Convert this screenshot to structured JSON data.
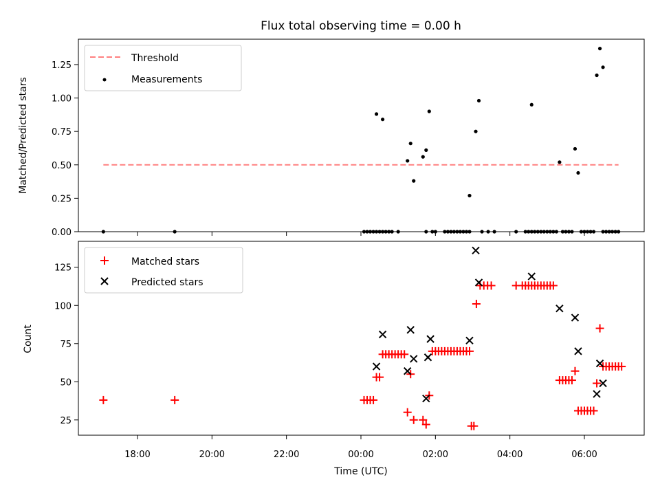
{
  "chart_data": [
    {
      "type": "scatter",
      "title": "Flux total observing time = 0.00 h",
      "ylabel": "Matched/Predicted stars",
      "ylim": [
        0,
        1.44
      ],
      "yticks": [
        "0.00",
        "0.25",
        "0.50",
        "0.75",
        "1.00",
        "1.25"
      ],
      "ytick_values": [
        0,
        0.25,
        0.5,
        0.75,
        1.0,
        1.25
      ],
      "legend": {
        "position": "top-left",
        "entries": [
          "Threshold",
          "Measurements"
        ]
      },
      "threshold": {
        "name": "Threshold",
        "value": 0.5,
        "x_range": [
          "17:05",
          "06:55"
        ],
        "color": "#ff7f7f"
      },
      "series": [
        {
          "name": "Measurements",
          "color": "#000000",
          "points": [
            [
              "17:05",
              0
            ],
            [
              "19:00",
              0
            ],
            [
              "00:05",
              0
            ],
            [
              "00:10",
              0
            ],
            [
              "00:15",
              0
            ],
            [
              "00:20",
              0
            ],
            [
              "00:25",
              0
            ],
            [
              "00:30",
              0
            ],
            [
              "00:35",
              0
            ],
            [
              "00:40",
              0
            ],
            [
              "00:45",
              0
            ],
            [
              "00:50",
              0
            ],
            [
              "01:00",
              0
            ],
            [
              "01:45",
              0
            ],
            [
              "01:55",
              0
            ],
            [
              "02:00",
              0
            ],
            [
              "02:15",
              0
            ],
            [
              "02:20",
              0
            ],
            [
              "02:25",
              0
            ],
            [
              "02:30",
              0
            ],
            [
              "02:35",
              0
            ],
            [
              "02:40",
              0
            ],
            [
              "02:45",
              0
            ],
            [
              "02:50",
              0
            ],
            [
              "02:55",
              0
            ],
            [
              "03:15",
              0
            ],
            [
              "03:25",
              0
            ],
            [
              "03:35",
              0
            ],
            [
              "04:10",
              0
            ],
            [
              "04:25",
              0
            ],
            [
              "04:30",
              0
            ],
            [
              "04:35",
              0
            ],
            [
              "04:40",
              0
            ],
            [
              "04:45",
              0
            ],
            [
              "04:50",
              0
            ],
            [
              "04:55",
              0
            ],
            [
              "05:00",
              0
            ],
            [
              "05:05",
              0
            ],
            [
              "05:10",
              0
            ],
            [
              "05:15",
              0
            ],
            [
              "05:25",
              0
            ],
            [
              "05:30",
              0
            ],
            [
              "05:35",
              0
            ],
            [
              "05:40",
              0
            ],
            [
              "05:55",
              0
            ],
            [
              "06:00",
              0
            ],
            [
              "06:05",
              0
            ],
            [
              "06:10",
              0
            ],
            [
              "06:15",
              0
            ],
            [
              "06:30",
              0
            ],
            [
              "06:35",
              0
            ],
            [
              "06:40",
              0
            ],
            [
              "06:45",
              0
            ],
            [
              "06:50",
              0
            ],
            [
              "06:55",
              0
            ],
            [
              "00:25",
              0.88
            ],
            [
              "00:35",
              0.84
            ],
            [
              "01:15",
              0.53
            ],
            [
              "01:20",
              0.66
            ],
            [
              "01:25",
              0.38
            ],
            [
              "01:40",
              0.56
            ],
            [
              "01:45",
              0.61
            ],
            [
              "01:50",
              0.9
            ],
            [
              "02:55",
              0.27
            ],
            [
              "03:05",
              0.75
            ],
            [
              "03:10",
              0.98
            ],
            [
              "04:35",
              0.95
            ],
            [
              "05:20",
              0.52
            ],
            [
              "05:45",
              0.62
            ],
            [
              "05:50",
              0.44
            ],
            [
              "06:20",
              1.17
            ],
            [
              "06:25",
              1.37
            ],
            [
              "06:30",
              1.23
            ]
          ]
        }
      ]
    },
    {
      "type": "scatter",
      "xlabel": "Time (UTC)",
      "ylabel": "Count",
      "ylim": [
        15,
        142
      ],
      "yticks": [
        "25",
        "50",
        "75",
        "100",
        "125"
      ],
      "ytick_values": [
        25,
        50,
        75,
        100,
        125
      ],
      "xticks": [
        "18:00",
        "20:00",
        "22:00",
        "00:00",
        "02:00",
        "04:00",
        "06:00"
      ],
      "legend": {
        "position": "top-left",
        "entries": [
          "Matched stars",
          "Predicted stars"
        ]
      },
      "series": [
        {
          "name": "Matched stars",
          "marker": "plus",
          "color": "#ff0000",
          "points": [
            [
              "17:05",
              38
            ],
            [
              "19:00",
              38
            ],
            [
              "00:05",
              38
            ],
            [
              "00:10",
              38
            ],
            [
              "00:15",
              38
            ],
            [
              "00:20",
              38
            ],
            [
              "00:25",
              53
            ],
            [
              "00:30",
              53
            ],
            [
              "00:35",
              68
            ],
            [
              "00:40",
              68
            ],
            [
              "00:45",
              68
            ],
            [
              "00:50",
              68
            ],
            [
              "00:55",
              68
            ],
            [
              "01:00",
              68
            ],
            [
              "01:05",
              68
            ],
            [
              "01:10",
              68
            ],
            [
              "01:15",
              30
            ],
            [
              "01:20",
              55
            ],
            [
              "01:25",
              25
            ],
            [
              "01:40",
              25
            ],
            [
              "01:45",
              22
            ],
            [
              "01:50",
              41
            ],
            [
              "01:55",
              70
            ],
            [
              "02:00",
              70
            ],
            [
              "02:05",
              70
            ],
            [
              "02:10",
              70
            ],
            [
              "02:15",
              70
            ],
            [
              "02:20",
              70
            ],
            [
              "02:25",
              70
            ],
            [
              "02:30",
              70
            ],
            [
              "02:35",
              70
            ],
            [
              "02:40",
              70
            ],
            [
              "02:45",
              70
            ],
            [
              "02:50",
              70
            ],
            [
              "02:55",
              70
            ],
            [
              "02:58",
              21
            ],
            [
              "03:02",
              21
            ],
            [
              "03:06",
              101
            ],
            [
              "03:12",
              113
            ],
            [
              "03:18",
              113
            ],
            [
              "03:24",
              113
            ],
            [
              "03:30",
              113
            ],
            [
              "04:10",
              113
            ],
            [
              "04:20",
              113
            ],
            [
              "04:25",
              113
            ],
            [
              "04:30",
              113
            ],
            [
              "04:35",
              113
            ],
            [
              "04:40",
              113
            ],
            [
              "04:45",
              113
            ],
            [
              "04:50",
              113
            ],
            [
              "04:55",
              113
            ],
            [
              "05:00",
              113
            ],
            [
              "05:05",
              113
            ],
            [
              "05:10",
              113
            ],
            [
              "05:20",
              51
            ],
            [
              "05:25",
              51
            ],
            [
              "05:30",
              51
            ],
            [
              "05:35",
              51
            ],
            [
              "05:40",
              51
            ],
            [
              "05:45",
              57
            ],
            [
              "05:50",
              31
            ],
            [
              "05:55",
              31
            ],
            [
              "06:00",
              31
            ],
            [
              "06:05",
              31
            ],
            [
              "06:10",
              31
            ],
            [
              "06:15",
              31
            ],
            [
              "06:20",
              49
            ],
            [
              "06:25",
              85
            ],
            [
              "06:30",
              60
            ],
            [
              "06:35",
              60
            ],
            [
              "06:40",
              60
            ],
            [
              "06:45",
              60
            ],
            [
              "06:50",
              60
            ],
            [
              "06:55",
              60
            ],
            [
              "07:00",
              60
            ]
          ]
        },
        {
          "name": "Predicted stars",
          "marker": "x",
          "color": "#000000",
          "points": [
            [
              "00:25",
              60
            ],
            [
              "00:35",
              81
            ],
            [
              "01:15",
              57
            ],
            [
              "01:20",
              84
            ],
            [
              "01:25",
              65
            ],
            [
              "01:45",
              39
            ],
            [
              "01:48",
              66
            ],
            [
              "01:52",
              78
            ],
            [
              "02:55",
              77
            ],
            [
              "03:05",
              136
            ],
            [
              "03:10",
              115
            ],
            [
              "04:35",
              119
            ],
            [
              "05:20",
              98
            ],
            [
              "05:45",
              92
            ],
            [
              "05:50",
              70
            ],
            [
              "06:20",
              42
            ],
            [
              "06:25",
              62
            ],
            [
              "06:30",
              49
            ]
          ]
        }
      ]
    }
  ]
}
